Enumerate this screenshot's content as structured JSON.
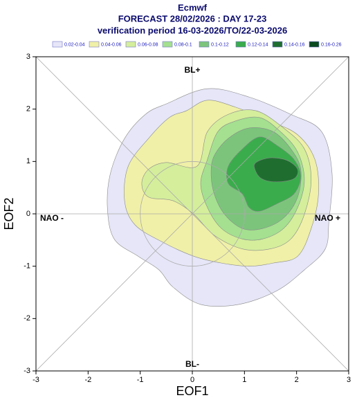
{
  "chart_data": {
    "type": "contour",
    "title": "Ecmwf",
    "subtitle": [
      "FORECAST 28/02/2026 : DAY 17-23",
      "verification period 16-03-2026/TO/22-03-2026"
    ],
    "x_label": "EOF1",
    "y_label": "EOF2",
    "xlim": [
      -3,
      3
    ],
    "ylim": [
      -3,
      3
    ],
    "xticks": [
      -3,
      -2,
      -1,
      0,
      1,
      2,
      3
    ],
    "yticks": [
      -3,
      -2,
      -1,
      0,
      1,
      2,
      3
    ],
    "annotations": [
      "BL+",
      "BL-",
      "NAO -",
      "NAO +"
    ],
    "series": [
      {
        "name": "0.02-0.04",
        "color": "#e6e6f8",
        "x": [
          -0.5,
          0.29,
          1.09,
          1.89,
          2.48,
          2.68,
          2.62,
          2.55,
          2.15,
          1.62,
          0.89,
          0.16,
          -0.37,
          -0.64,
          -1.04,
          -1.5,
          -1.63,
          -1.57,
          -1.3,
          -0.9
        ],
        "values": [
          2.1,
          2.39,
          2.23,
          1.9,
          1.57,
          0.78,
          -0.15,
          -0.67,
          -1.07,
          -1.47,
          -1.73,
          -1.73,
          -1.4,
          -1.07,
          -0.81,
          -0.48,
          0.12,
          0.78,
          1.44,
          1.9
        ]
      },
      {
        "name": "0.04-0.06",
        "color": "#f0f0a8",
        "x": [
          -0.11,
          0.29,
          0.82,
          1.49,
          2.02,
          2.35,
          2.42,
          2.28,
          2.02,
          1.55,
          1.09,
          0.56,
          0.03,
          -0.57,
          -1.1,
          -1.3,
          -1.23,
          -0.84,
          -0.44
        ],
        "values": [
          1.97,
          2.17,
          2.04,
          1.77,
          1.51,
          1.04,
          0.38,
          -0.28,
          -0.81,
          -0.94,
          -1.0,
          -0.94,
          -0.81,
          -0.54,
          -0.21,
          0.25,
          0.91,
          1.44,
          1.84
        ]
      },
      {
        "name": "0.06-0.08",
        "color": "#d4ee9c",
        "x": [
          -0.84,
          -0.5,
          0.09,
          0.29,
          0.69,
          1.22,
          1.75,
          2.15,
          2.28,
          2.15,
          1.89,
          1.49,
          0.96,
          0.42,
          0.03,
          -0.37,
          -0.84,
          -0.97
        ],
        "values": [
          0.85,
          0.98,
          0.91,
          1.57,
          1.9,
          1.97,
          1.64,
          1.24,
          0.65,
          -0.01,
          -0.48,
          -0.67,
          -0.67,
          -0.41,
          -0.01,
          0.25,
          0.32,
          0.58
        ]
      },
      {
        "name": "0.08-0.1",
        "color": "#a4e090",
        "x": [
          0.29,
          0.49,
          0.82,
          1.29,
          1.69,
          2.02,
          2.15,
          2.02,
          1.75,
          1.35,
          0.96,
          0.56,
          0.29,
          0.16
        ],
        "values": [
          1.04,
          1.57,
          1.77,
          1.84,
          1.57,
          1.18,
          0.65,
          0.12,
          -0.28,
          -0.48,
          -0.48,
          -0.28,
          0.12,
          0.58
        ]
      },
      {
        "name": "0.1-0.12",
        "color": "#7cc47c",
        "x": [
          0.42,
          0.69,
          1.09,
          1.55,
          1.89,
          2.08,
          2.02,
          1.75,
          1.35,
          0.96,
          0.62,
          0.42,
          0.36
        ],
        "values": [
          1.11,
          1.44,
          1.64,
          1.57,
          1.24,
          0.85,
          0.32,
          -0.08,
          -0.28,
          -0.28,
          -0.01,
          0.38,
          0.78
        ]
      },
      {
        "name": "0.12-0.14",
        "color": "#3aac4c",
        "x": [
          0.69,
          0.96,
          1.29,
          1.62,
          1.95,
          2.08,
          1.95,
          1.62,
          1.29,
          1.09,
          0.96,
          0.69
        ],
        "values": [
          0.91,
          1.24,
          1.47,
          1.31,
          1.04,
          0.71,
          0.38,
          0.19,
          0.05,
          0.12,
          0.38,
          0.58
        ]
      },
      {
        "name": "0.14-0.16",
        "color": "#1f6e30",
        "x": [
          1.22,
          1.49,
          1.82,
          2.02,
          1.95,
          1.62,
          1.33,
          1.2
        ],
        "values": [
          0.98,
          1.07,
          1.02,
          0.85,
          0.67,
          0.61,
          0.67,
          0.85
        ]
      },
      {
        "name": "0.16-0.26",
        "color": "#0a4a1e",
        "x": [],
        "values": []
      }
    ]
  }
}
